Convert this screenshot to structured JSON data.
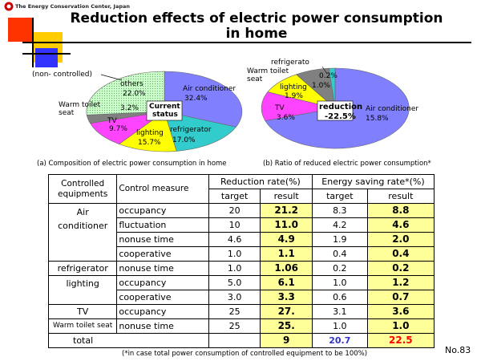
{
  "header": {
    "logo_text": "The Energy Conservation Center, Japan",
    "title_line1": "Reduction effects of electric power consumption",
    "title_line2": "in home"
  },
  "colors": {
    "air_conditioner": "#8080ff",
    "refrigerator": "#33cccc",
    "lighting": "#ffff00",
    "tv": "#ff44ff",
    "warm_toilet_seat": "#808080",
    "others": "#ccffcc",
    "highlight": "#ffff99",
    "total_blue": "#3333cc",
    "total_red": "#ff0000"
  },
  "pie_a": {
    "center_label_1": "Current",
    "center_label_2": "status",
    "non_controlled": "(non- controlled)",
    "labels": {
      "air_name": "Air conditioner",
      "air_pct": "32.4%",
      "ref_name": "refrigerator",
      "ref_pct": "17.0%",
      "light_name": "lighting",
      "light_pct": "15.7%",
      "tv_name": "TV",
      "tv_pct": "9.7%",
      "toilet_name_1": "Warm toilet",
      "toilet_name_2": "seat",
      "toilet_pct": "3.2%",
      "others_name": "others",
      "others_pct": "22.0%"
    },
    "caption": "(a) Composition of electric power consumption in home"
  },
  "pie_b": {
    "center_label_1": "reduction",
    "center_label_2": "-22.5%",
    "labels": {
      "ref_name": "refrigerato",
      "ref_pct": "0.2%",
      "toilet_name_1": "Warm toilet",
      "toilet_name_2": "seat",
      "toilet_pct": "1.0%",
      "light_name": "lighting",
      "light_pct": "1.9%",
      "tv_name": "TV",
      "tv_pct": "3.6%",
      "air_name": "Air conditioner",
      "air_pct": "15.8%"
    },
    "caption": "(b) Ratio of reduced electric power consumption*"
  },
  "table": {
    "h_equip_1": "Controlled",
    "h_equip_2": "equipments",
    "h_measure": "Control measure",
    "h_reduction": "Reduction rate(%)",
    "h_saving": "Energy saving rate*(%)",
    "h_target": "target",
    "h_result": "result",
    "eq_air_1": "Air",
    "eq_air_2": "conditioner",
    "eq_ref": "refrigerator",
    "eq_light": "lighting",
    "eq_tv": "TV",
    "eq_toilet": "Warm toilet seat",
    "rows": [
      {
        "measure": "occupancy",
        "rt": "20",
        "rr": "21.2",
        "st": "8.3",
        "sr": "8.8"
      },
      {
        "measure": "fluctuation",
        "rt": "10",
        "rr": "11.0",
        "st": "4.2",
        "sr": "4.6"
      },
      {
        "measure": "nonuse time",
        "rt": "4.6",
        "rr": "4.9",
        "st": "1.9",
        "sr": "2.0"
      },
      {
        "measure": "cooperative",
        "rt": "1.0",
        "rr": "1.1",
        "st": "0.4",
        "sr": "0.4"
      },
      {
        "measure": "nonuse time",
        "rt": "1.0",
        "rr": "1.06",
        "st": "0.2",
        "sr": "0.2"
      },
      {
        "measure": "occupancy",
        "rt": "5.0",
        "rr": "6.1",
        "st": "1.0",
        "sr": "1.2"
      },
      {
        "measure": "cooperative",
        "rt": "3.0",
        "rr": "3.3",
        "st": "0.6",
        "sr": "0.7"
      },
      {
        "measure": "occupancy",
        "rt": "25",
        "rr": "27.",
        "st": "3.1",
        "sr": "3.6"
      },
      {
        "measure": "nonuse time",
        "rt": "25",
        "rr": "25.",
        "st": "1.0",
        "sr": "1.0"
      }
    ],
    "total_label": "total",
    "total_rr": "9",
    "total_st": "20.7",
    "total_sr": "22.5"
  },
  "footer": {
    "note": "(*in case total power consumption of controlled equipment to be 100%)",
    "page": "No.83"
  }
}
